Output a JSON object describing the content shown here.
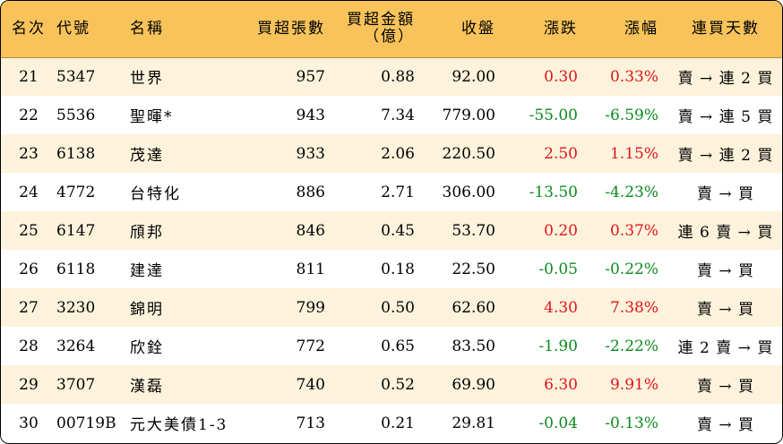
{
  "colors": {
    "header_bg": "#f7c35a",
    "row_alt_bg": "#fdf3dc",
    "up": "#e0141b",
    "down": "#0b8a1e"
  },
  "headers": {
    "rank": "名次",
    "code": "代號",
    "name": "名稱",
    "net_buy_lots": "買超張數",
    "net_buy_amount": "買超金額",
    "net_buy_amount_unit": "（億）",
    "close": "收盤",
    "change": "漲跌",
    "pct": "漲幅",
    "streak": "連買天數"
  },
  "rows": [
    {
      "rank": "21",
      "code": "5347",
      "name": "世界",
      "lots": "957",
      "amount": "0.88",
      "close": "92.00",
      "change": "0.30",
      "pct": "0.33%",
      "dir": "up",
      "streak": "賣 → 連 2 買"
    },
    {
      "rank": "22",
      "code": "5536",
      "name": "聖暉*",
      "lots": "943",
      "amount": "7.34",
      "close": "779.00",
      "change": "-55.00",
      "pct": "-6.59%",
      "dir": "down",
      "streak": "賣 → 連 5 買"
    },
    {
      "rank": "23",
      "code": "6138",
      "name": "茂達",
      "lots": "933",
      "amount": "2.06",
      "close": "220.50",
      "change": "2.50",
      "pct": "1.15%",
      "dir": "up",
      "streak": "賣 → 連 2 買"
    },
    {
      "rank": "24",
      "code": "4772",
      "name": "台特化",
      "lots": "886",
      "amount": "2.71",
      "close": "306.00",
      "change": "-13.50",
      "pct": "-4.23%",
      "dir": "down",
      "streak": "賣 → 買"
    },
    {
      "rank": "25",
      "code": "6147",
      "name": "頎邦",
      "lots": "846",
      "amount": "0.45",
      "close": "53.70",
      "change": "0.20",
      "pct": "0.37%",
      "dir": "up",
      "streak": "連 6 賣 → 買"
    },
    {
      "rank": "26",
      "code": "6118",
      "name": "建達",
      "lots": "811",
      "amount": "0.18",
      "close": "22.50",
      "change": "-0.05",
      "pct": "-0.22%",
      "dir": "down",
      "streak": "賣 → 買"
    },
    {
      "rank": "27",
      "code": "3230",
      "name": "錦明",
      "lots": "799",
      "amount": "0.50",
      "close": "62.60",
      "change": "4.30",
      "pct": "7.38%",
      "dir": "up",
      "streak": "賣 → 買"
    },
    {
      "rank": "28",
      "code": "3264",
      "name": "欣銓",
      "lots": "772",
      "amount": "0.65",
      "close": "83.50",
      "change": "-1.90",
      "pct": "-2.22%",
      "dir": "down",
      "streak": "連 2 賣 → 買"
    },
    {
      "rank": "29",
      "code": "3707",
      "name": "漢磊",
      "lots": "740",
      "amount": "0.52",
      "close": "69.90",
      "change": "6.30",
      "pct": "9.91%",
      "dir": "up",
      "streak": "賣 → 買"
    },
    {
      "rank": "30",
      "code": "00719B",
      "name": "元大美債1-3",
      "lots": "713",
      "amount": "0.21",
      "close": "29.81",
      "change": "-0.04",
      "pct": "-0.13%",
      "dir": "down",
      "streak": "賣 → 買"
    }
  ]
}
